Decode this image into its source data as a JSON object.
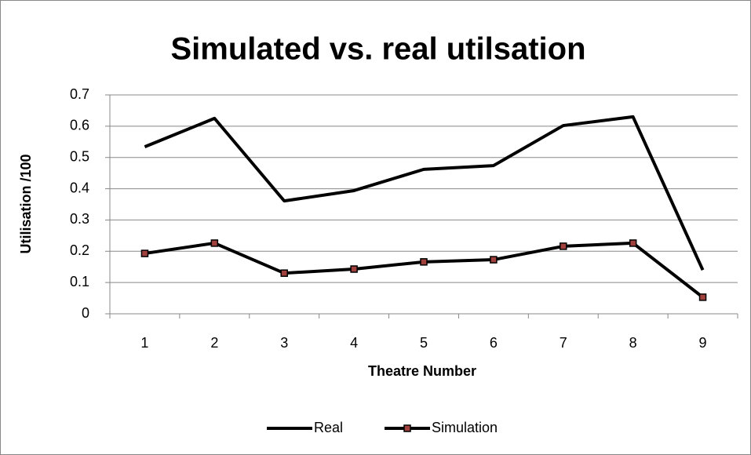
{
  "chart_data": {
    "type": "line",
    "title": "Simulated vs. real utilsation",
    "x_label": "Theatre Number",
    "y_label": "Utilisation /100",
    "categories": [
      "1",
      "2",
      "3",
      "4",
      "5",
      "6",
      "7",
      "8",
      "9"
    ],
    "series": [
      {
        "name": "Real",
        "color": "#000000",
        "marker": "none",
        "values": [
          0.534,
          0.625,
          0.361,
          0.394,
          0.462,
          0.474,
          0.602,
          0.63,
          0.14
        ]
      },
      {
        "name": "Simulation",
        "color": "#000000",
        "marker": "square",
        "marker_color": "#a0413e",
        "values": [
          0.193,
          0.226,
          0.13,
          0.143,
          0.166,
          0.173,
          0.216,
          0.226,
          0.053
        ]
      }
    ],
    "ylim": [
      0,
      0.7
    ],
    "yticks": [
      0,
      0.1,
      0.2,
      0.3,
      0.4,
      0.5,
      0.6,
      0.7
    ],
    "grid": true,
    "legend": "bottom"
  }
}
